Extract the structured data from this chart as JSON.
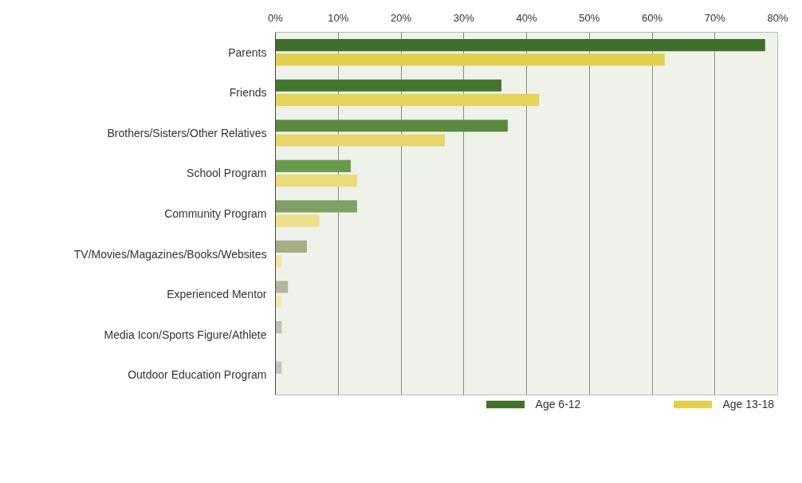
{
  "chart_data": {
    "type": "bar",
    "orientation": "horizontal",
    "categories": [
      "Parents",
      "Friends",
      "Brothers/Sisters/Other Relatives",
      "School Program",
      "Community Program",
      "TV/Movies/Magazines/Books/Websites",
      "Experienced Mentor",
      "Media Icon/Sports Figure/Athlete",
      "Outdoor Education Program"
    ],
    "series": [
      {
        "name": "Age 6-12",
        "color": "#3f6f2a",
        "colors": [
          "#3f6f2a",
          "#44752f",
          "#5a8a3c",
          "#6a9a4e",
          "#7ea062",
          "#a9ad86",
          "#b4b69a",
          "#c2c3b4",
          "#c4c4c0"
        ],
        "values": [
          78,
          36,
          37,
          12,
          13,
          5,
          2,
          1,
          1
        ]
      },
      {
        "name": "Age 13-18",
        "color": "#e3cf4e",
        "colors": [
          "#e3cf4e",
          "#e6d35a",
          "#e8d66a",
          "#ebdb7a",
          "#eedf8a",
          "#f1e6a6",
          "#f2e9b4",
          "#f4ecc4",
          "#f4eeca"
        ],
        "values": [
          62,
          42,
          27,
          13,
          7,
          1,
          1,
          0,
          0
        ]
      }
    ],
    "xlim": [
      0,
      80
    ],
    "xticks": [
      {
        "value": 0,
        "label": "0%"
      },
      {
        "value": 10,
        "label": "10%"
      },
      {
        "value": 20,
        "label": "20%"
      },
      {
        "value": 30,
        "label": "30%"
      },
      {
        "value": 40,
        "label": "40%"
      },
      {
        "value": 50,
        "label": "50%"
      },
      {
        "value": 60,
        "label": "60%"
      },
      {
        "value": 70,
        "label": "70%"
      },
      {
        "value": 80,
        "label": "80%"
      }
    ],
    "grid": "x",
    "legend": "bottom"
  }
}
